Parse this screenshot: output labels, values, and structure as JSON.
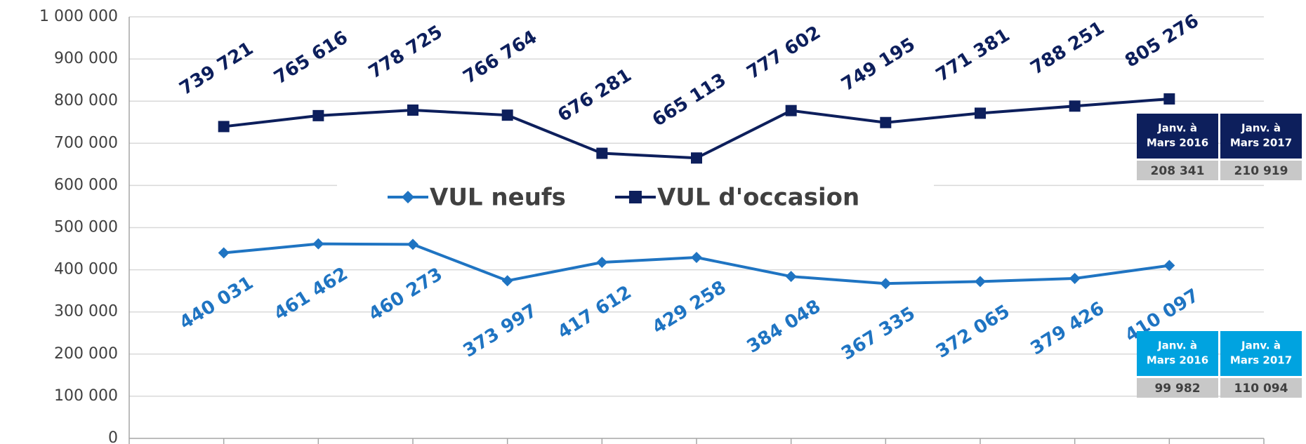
{
  "chart_data": {
    "type": "line",
    "categories": [
      null,
      null,
      null,
      null,
      null,
      null,
      null,
      null,
      null,
      null,
      null
    ],
    "series": [
      {
        "name": "VUL neufs",
        "color": "#1f74c2",
        "marker": "diamond",
        "values": [
          440031,
          461462,
          460273,
          373997,
          417612,
          429258,
          384048,
          367335,
          372065,
          379426,
          410097
        ],
        "value_labels": [
          "440 031",
          "461 462",
          "460 273",
          "373 997",
          "417 612",
          "429 258",
          "384 048",
          "367 335",
          "372 065",
          "379 426",
          "410 097"
        ]
      },
      {
        "name": "VUL d'occasion",
        "color": "#0d1f5c",
        "marker": "square",
        "values": [
          739721,
          765616,
          778725,
          766764,
          676281,
          665113,
          777602,
          749195,
          771381,
          788251,
          805276
        ],
        "value_labels": [
          "739 721",
          "765 616",
          "778 725",
          "766 764",
          "676 281",
          "665 113",
          "777 602",
          "749 195",
          "771 381",
          "788 251",
          "805 276"
        ]
      }
    ],
    "ylim": [
      0,
      1000000
    ],
    "yticks": [
      0,
      {
        "value": 100000,
        "label": "100 000"
      },
      {
        "value": 200000,
        "label": "200 000"
      },
      {
        "value": 300000,
        "label": "300 000"
      },
      {
        "value": 400000,
        "label": "400 000"
      },
      {
        "value": 500000,
        "label": "500 000"
      },
      {
        "value": 600000,
        "label": "600 000"
      },
      {
        "value": 700000,
        "label": "700 000"
      },
      {
        "value": 800000,
        "label": "800 000"
      },
      {
        "value": 900000,
        "label": "900 000"
      },
      {
        "value": 1000000,
        "label": "1 000 000"
      }
    ],
    "grid": true,
    "legend": "center",
    "summary_tables": [
      {
        "color": "#0d1f5c",
        "headers": [
          [
            "Janv. à",
            "Mars 2016"
          ],
          [
            "Janv. à",
            "Mars 2017"
          ]
        ],
        "values": [
          208341,
          210919
        ],
        "value_labels": [
          "208 341",
          "210 919"
        ]
      },
      {
        "color": "#00a3e0",
        "headers": [
          [
            "Janv. à",
            "Mars 2016"
          ],
          [
            "Janv. à",
            "Mars 2017"
          ]
        ],
        "values": [
          99982,
          110094
        ],
        "value_labels": [
          "99 982",
          "110 094"
        ]
      }
    ]
  }
}
